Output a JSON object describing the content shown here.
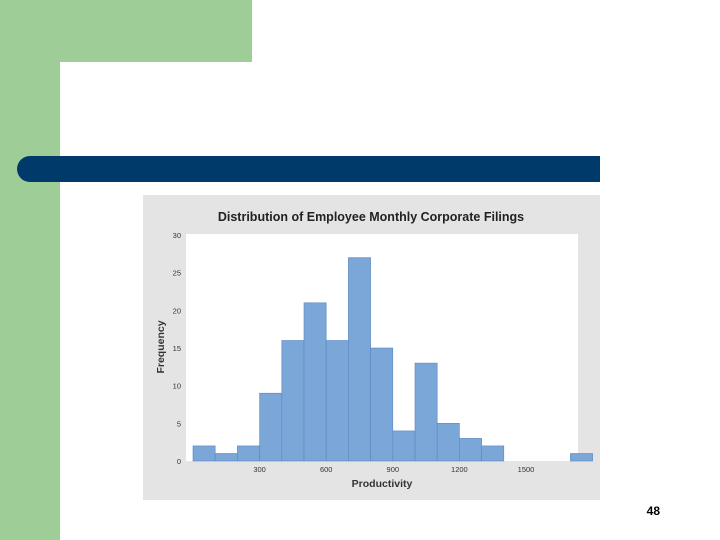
{
  "slide": {
    "page_number": "48",
    "colors": {
      "accent_green": "#9ecd98",
      "title_bar": "#003a6b",
      "bar_fill": "#7ba6d8"
    }
  },
  "chart_data": {
    "type": "bar",
    "title": "Distribution of Employee Monthly Corporate Filings",
    "xlabel": "Productivity",
    "ylabel": "Frequency",
    "categories": [
      "50",
      "150",
      "250",
      "350",
      "450",
      "550",
      "650",
      "750",
      "850",
      "950",
      "1050",
      "1150",
      "1250",
      "1350",
      "1450",
      "1550",
      "1650",
      "1750"
    ],
    "values": [
      2,
      1,
      2,
      9,
      16,
      21,
      16,
      27,
      15,
      4,
      13,
      5,
      3,
      2,
      0,
      0,
      0,
      1
    ],
    "bin_width": 100,
    "xticks": [
      "300",
      "600",
      "900",
      "1200",
      "1500"
    ],
    "yticks": [
      "0",
      "5",
      "10",
      "15",
      "20",
      "25",
      "30"
    ],
    "ylim": [
      0,
      30
    ],
    "xlim": [
      0,
      1800
    ],
    "grid": false,
    "legend": "none"
  }
}
